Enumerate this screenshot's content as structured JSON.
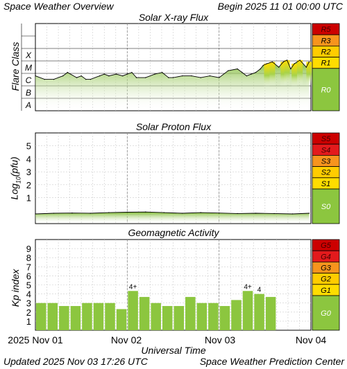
{
  "header": {
    "title": "Space Weather Overview",
    "begin_label": "Begin",
    "begin_value": "2025 11 01 00:00 UTC"
  },
  "footer": {
    "updated_label": "Updated",
    "updated_value": "2025 Nov 03 17:26 UTC",
    "source": "Space Weather Prediction Center"
  },
  "x_axis": {
    "label": "Universal Time",
    "ticks": [
      "2025 Nov 01",
      "Nov 02",
      "Nov 03",
      "Nov 04"
    ],
    "range_days": [
      0,
      3
    ]
  },
  "colors": {
    "green": "#8cc63f",
    "yellow": "#ffdd00",
    "orange": "#f7941d",
    "red": "#cc0000",
    "gridline": "#cccccc"
  },
  "chart_data": [
    {
      "type": "line",
      "title": "Solar X-ray Flux",
      "ylabel": "Flare Class",
      "y_levels": [
        "A",
        "B",
        "C",
        "M",
        "X"
      ],
      "ylim": [
        -8,
        -3
      ],
      "scale": "log",
      "scale_bar": [
        {
          "label": "R5",
          "color": "#cc0000"
        },
        {
          "label": "R3",
          "color": "#f7941d"
        },
        {
          "label": "R2",
          "color": "#ffcc00"
        },
        {
          "label": "R1",
          "color": "#ffdd00"
        },
        {
          "label": "R0",
          "color": "#8cc63f"
        }
      ],
      "x": [
        0,
        0.1,
        0.2,
        0.3,
        0.35,
        0.45,
        0.5,
        0.55,
        0.6,
        0.7,
        0.75,
        0.8,
        0.88,
        0.95,
        1.0,
        1.05,
        1.1,
        1.2,
        1.3,
        1.38,
        1.45,
        1.5,
        1.6,
        1.7,
        1.8,
        1.9,
        2.0,
        2.1,
        2.2,
        2.25,
        2.3,
        2.35,
        2.4,
        2.45,
        2.48,
        2.52,
        2.58,
        2.65,
        2.7,
        2.74,
        2.78,
        2.82,
        2.88,
        2.95,
        2.98
      ],
      "values": [
        -6.0,
        -6.2,
        -6.2,
        -6.0,
        -5.8,
        -6.1,
        -6.0,
        -6.2,
        -6.2,
        -6.0,
        -5.9,
        -6.0,
        -5.9,
        -6.0,
        -5.9,
        -5.8,
        -6.1,
        -6.1,
        -5.9,
        -5.8,
        -6.1,
        -6.1,
        -6.0,
        -6.0,
        -6.1,
        -6.0,
        -6.1,
        -5.7,
        -5.6,
        -5.8,
        -6.0,
        -5.9,
        -5.8,
        -5.6,
        -5.4,
        -5.3,
        -5.2,
        -5.5,
        -5.2,
        -5.1,
        -5.6,
        -5.3,
        -5.1,
        -5.5,
        -5.2
      ]
    },
    {
      "type": "line",
      "title": "Solar Proton Flux",
      "ylabel_main": "Log",
      "ylabel_sub": "10",
      "ylabel_tail": "(pfu)",
      "y_ticks": [
        "1",
        "2",
        "3",
        "4",
        "5"
      ],
      "ylim": [
        -1,
        6
      ],
      "scale_bar": [
        {
          "label": "S5",
          "color": "#cc0000"
        },
        {
          "label": "S4",
          "color": "#e31a1c"
        },
        {
          "label": "S3",
          "color": "#f7941d"
        },
        {
          "label": "S2",
          "color": "#ffcc00"
        },
        {
          "label": "S1",
          "color": "#ffdd00"
        },
        {
          "label": "S0",
          "color": "#8cc63f"
        }
      ],
      "x": [
        0,
        0.2,
        0.4,
        0.6,
        0.8,
        1.0,
        1.2,
        1.4,
        1.6,
        1.8,
        2.0,
        2.2,
        2.4,
        2.6,
        2.8,
        2.98
      ],
      "values": [
        -0.25,
        -0.2,
        -0.18,
        -0.2,
        -0.15,
        -0.12,
        -0.1,
        -0.15,
        -0.2,
        -0.15,
        -0.18,
        -0.22,
        -0.2,
        -0.22,
        -0.25,
        -0.2
      ]
    },
    {
      "type": "bar",
      "title": "Geomagnetic Activity",
      "ylabel": "Kp index",
      "y_ticks": [
        "1",
        "2",
        "3",
        "4",
        "5",
        "6",
        "7",
        "8",
        "9"
      ],
      "ylim": [
        0,
        10
      ],
      "bar_width_hours": 3,
      "values": [
        3.0,
        3.0,
        2.67,
        2.67,
        3.0,
        3.0,
        3.0,
        2.33,
        4.33,
        3.67,
        3.0,
        2.67,
        2.67,
        3.67,
        3.0,
        3.0,
        2.67,
        3.33,
        4.33,
        4.0,
        3.67
      ],
      "data_labels": [
        {
          "index": 8,
          "text": "4+"
        },
        {
          "index": 18,
          "text": "4+"
        },
        {
          "index": 19,
          "text": "4"
        }
      ],
      "scale_bar": [
        {
          "label": "G5",
          "color": "#cc0000"
        },
        {
          "label": "G4",
          "color": "#e31a1c"
        },
        {
          "label": "G3",
          "color": "#f7941d"
        },
        {
          "label": "G2",
          "color": "#ffcc00"
        },
        {
          "label": "G1",
          "color": "#ffdd00"
        },
        {
          "label": "G0",
          "color": "#8cc63f"
        }
      ]
    }
  ]
}
